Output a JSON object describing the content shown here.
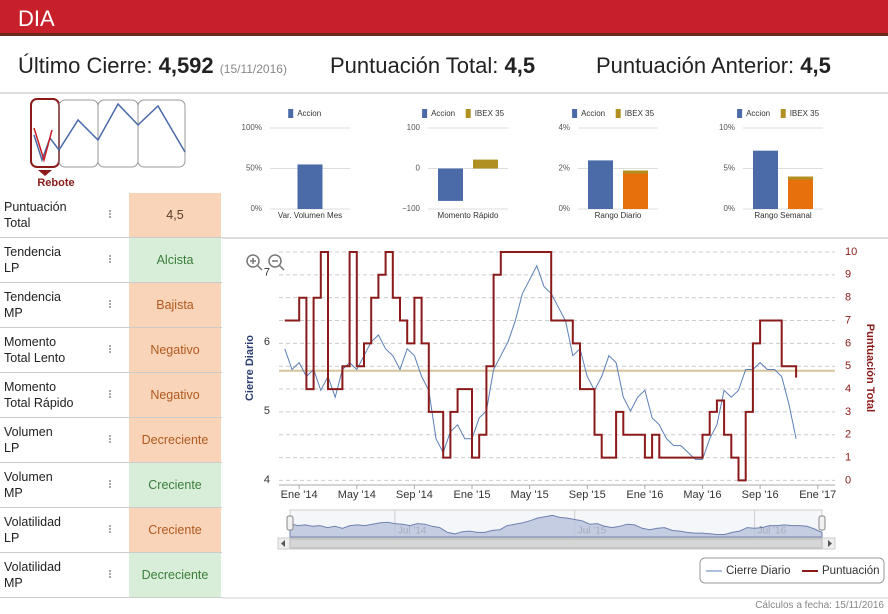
{
  "header": {
    "title": "DIA"
  },
  "summary": {
    "last_close_label": "Último Cierre:",
    "last_close": "4,592",
    "last_close_date": "(15/11/2016)",
    "total_score_label": "Puntuación Total:",
    "total_score": "4,5",
    "prev_score_label": "Puntuación Anterior:",
    "prev_score": "4,5"
  },
  "signal": {
    "label": "Rebote"
  },
  "table": {
    "rows": [
      {
        "label": "Puntuación\nTotal",
        "value": "4,5",
        "color": "#f9d4b8",
        "text_color": "#5a3a2a"
      },
      {
        "label": "Tendencia\nLP",
        "value": "Alcista",
        "color": "#d8eed9",
        "text_color": "#3b7d3b"
      },
      {
        "label": "Tendencia\nMP",
        "value": "Bajista",
        "color": "#f9d4b8",
        "text_color": "#b05a20"
      },
      {
        "label": "Momento\nTotal Lento",
        "value": "Negativo",
        "color": "#f9d4b8",
        "text_color": "#b05a20"
      },
      {
        "label": "Momento\nTotal Rápido",
        "value": "Negativo",
        "color": "#f9d4b8",
        "text_color": "#b05a20"
      },
      {
        "label": "Volumen\nLP",
        "value": "Decreciente",
        "color": "#f9d4b8",
        "text_color": "#b05a20"
      },
      {
        "label": "Volumen\nMP",
        "value": "Creciente",
        "color": "#d8eed9",
        "text_color": "#3b7d3b"
      },
      {
        "label": "Volatilidad\nLP",
        "value": "Creciente",
        "color": "#f9d4b8",
        "text_color": "#b05a20"
      },
      {
        "label": "Volatilidad\nMP",
        "value": "Decreciente",
        "color": "#d8eed9",
        "text_color": "#3b7d3b"
      }
    ]
  },
  "chart_data": [
    {
      "type": "bar",
      "title": "Var. Volumen Mes",
      "ylim": [
        0,
        100
      ],
      "yticks": [
        {
          "value": 0,
          "label": "0%"
        },
        {
          "value": 50,
          "label": "50%"
        },
        {
          "value": 100,
          "label": "100%"
        }
      ],
      "series": [
        {
          "name": "Accion",
          "color": "#4a6aa8",
          "values": [
            55
          ]
        }
      ]
    },
    {
      "type": "bar",
      "title": "Momento Rápido",
      "ylim": [
        -100,
        100
      ],
      "yticks": [
        {
          "value": -100,
          "label": "−100"
        },
        0,
        100
      ],
      "series": [
        {
          "name": "Accion",
          "color": "#4a6aa8",
          "values": [
            -80
          ]
        },
        {
          "name": "IBEX 35",
          "color": "#b09020",
          "values": [
            22
          ]
        }
      ]
    },
    {
      "type": "bar",
      "title": "Rango Diario",
      "ylim": [
        0,
        4
      ],
      "yticks": [
        {
          "value": 0,
          "label": "0%"
        },
        {
          "value": 2,
          "label": "2%"
        },
        {
          "value": 4,
          "label": "4%"
        }
      ],
      "series": [
        {
          "name": "Accion",
          "color": "#4a6aa8",
          "values": [
            2.4
          ]
        },
        {
          "name": "IBEX 35",
          "color": "#b09020",
          "bar_color": "#e8700c",
          "values": [
            1.9
          ]
        }
      ]
    },
    {
      "type": "bar",
      "title": "Rango Semanal",
      "ylim": [
        0,
        10
      ],
      "yticks": [
        {
          "value": 0,
          "label": "0%"
        },
        {
          "value": 5,
          "label": "5%"
        },
        {
          "value": 10,
          "label": "10%"
        }
      ],
      "series": [
        {
          "name": "Accion",
          "color": "#4a6aa8",
          "values": [
            7.2
          ]
        },
        {
          "name": "IBEX 35",
          "color": "#b09020",
          "bar_color": "#e8700c",
          "values": [
            4.0
          ]
        }
      ]
    },
    {
      "type": "line",
      "y_label": "Cierre Diario",
      "y2_label": "Puntuación Total",
      "grid": true,
      "legend": "bottom-right",
      "x": [
        -1,
        -0.5,
        0,
        0.5,
        1,
        1.5,
        2,
        2.5,
        3,
        3.5,
        4,
        4.5,
        5,
        5.5,
        6,
        6.5,
        7,
        7.5,
        8,
        8.5,
        9,
        9.5,
        10,
        10.5,
        11,
        11.5,
        12,
        12.5,
        13,
        13.5,
        14,
        14.5,
        15,
        15.5,
        16,
        16.5,
        17,
        17.5,
        18,
        18.5,
        19,
        19.5,
        20,
        20.5,
        21,
        21.5,
        22,
        22.5,
        23,
        23.5,
        24,
        24.5,
        25,
        25.5,
        26,
        26.5,
        27,
        27.5,
        28,
        28.5,
        29,
        29.5,
        30,
        30.5,
        31,
        31.5,
        32,
        32.5,
        33,
        33.5,
        34,
        34.5
      ],
      "xlim": [
        -1.4,
        37.2
      ],
      "xticks": [
        {
          "value": 0,
          "label": "Ene '14"
        },
        {
          "value": 4,
          "label": "May '14"
        },
        {
          "value": 8,
          "label": "Sep '14"
        },
        {
          "value": 12,
          "label": "Ene '15"
        },
        {
          "value": 16,
          "label": "May '15"
        },
        {
          "value": 20,
          "label": "Sep '15"
        },
        {
          "value": 24,
          "label": "Ene '16"
        },
        {
          "value": 28,
          "label": "May '16"
        },
        {
          "value": 32,
          "label": "Sep '16"
        },
        {
          "value": 36,
          "label": "Ene '17"
        }
      ],
      "ylim": [
        3.93,
        7.3
      ],
      "yticks": [
        4,
        5,
        6,
        7
      ],
      "y2lim": [
        -0.2,
        10
      ],
      "y2ticks": [
        0,
        1,
        2,
        3,
        4,
        5,
        6,
        7,
        8,
        9,
        10
      ],
      "reference_line": {
        "value": 4.8,
        "axis": "y2",
        "color": "#d8c49c"
      },
      "navigator_ticks": [
        {
          "value": 6,
          "label": "Jul '14"
        },
        {
          "value": 18,
          "label": "Jul '15"
        },
        {
          "value": 30,
          "label": "Jul '16"
        }
      ],
      "series": [
        {
          "name": "Cierre Diario",
          "color": "#5b7fb8",
          "values": [
            5.9,
            5.6,
            5.7,
            5.5,
            5.6,
            5.3,
            5.5,
            5.2,
            5.6,
            5.7,
            5.6,
            5.8,
            6.0,
            6.1,
            5.9,
            5.8,
            5.6,
            5.9,
            5.8,
            5.5,
            5.3,
            4.6,
            4.4,
            4.7,
            4.8,
            4.6,
            4.6,
            4.9,
            5.0,
            5.6,
            5.8,
            6.0,
            6.3,
            6.7,
            6.9,
            7.1,
            6.8,
            6.7,
            6.5,
            6.3,
            5.8,
            5.9,
            5.5,
            5.3,
            5.5,
            5.8,
            5.7,
            5.2,
            5.0,
            5.2,
            5.3,
            4.9,
            4.8,
            4.6,
            4.5,
            4.5,
            4.4,
            4.3,
            4.3,
            4.6,
            4.8,
            5.3,
            5.2,
            5.3,
            5.6,
            5.6,
            5.7,
            5.6,
            5.6,
            5.5,
            5.1,
            4.6
          ]
        },
        {
          "name": "Puntuación",
          "color": "#8b1a1a",
          "axis": "y2",
          "step": true,
          "values": [
            7,
            7,
            8,
            4,
            8,
            10,
            4,
            4,
            5,
            10,
            5,
            6,
            8,
            9,
            10,
            8,
            7,
            6,
            8,
            6,
            3,
            3,
            1,
            3,
            4,
            4,
            1,
            2,
            5,
            9,
            10,
            10,
            10,
            10,
            10,
            10,
            10,
            7,
            7,
            7,
            6,
            4,
            4,
            2,
            1,
            1,
            3,
            2,
            2,
            2,
            1,
            2,
            1,
            1,
            1,
            1,
            1,
            1,
            2,
            3,
            3.5,
            2,
            1,
            0,
            3,
            6,
            7,
            7,
            7,
            5,
            5,
            4.5
          ]
        }
      ]
    }
  ],
  "footer": {
    "text": "Cálculos a fecha: 15/11/2016"
  }
}
